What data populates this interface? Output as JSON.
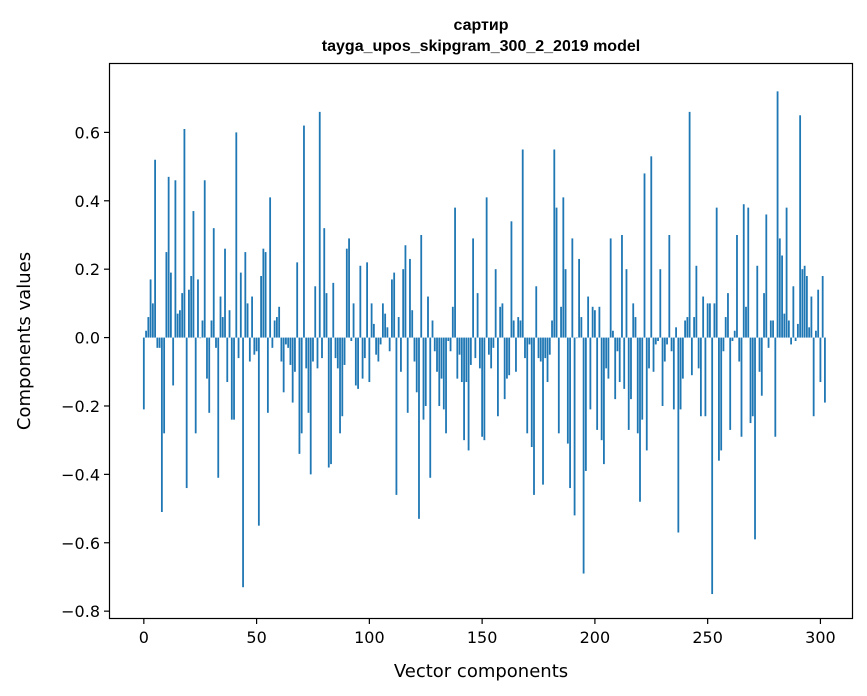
{
  "chart_data": {
    "type": "bar",
    "title": "сартир",
    "subtitle": "tayga_upos_skipgram_300_2_2019 model",
    "xlabel": "Vector components",
    "ylabel": "Components values",
    "xlim": [
      -15,
      314
    ],
    "ylim": [
      -0.82,
      0.8
    ],
    "xticks": [
      0,
      50,
      100,
      150,
      200,
      250,
      300
    ],
    "xtick_labels": [
      "0",
      "50",
      "100",
      "150",
      "200",
      "250",
      "300"
    ],
    "yticks": [
      -0.8,
      -0.6,
      -0.4,
      -0.2,
      0.0,
      0.2,
      0.4,
      0.6
    ],
    "ytick_labels": [
      "−0.8",
      "−0.6",
      "−0.4",
      "−0.2",
      "0.0",
      "0.2",
      "0.4",
      "0.6"
    ],
    "bar_color": "#1f77b4",
    "grid": false,
    "values": [
      -0.21,
      0.02,
      0.06,
      0.17,
      0.1,
      0.52,
      -0.03,
      -0.03,
      -0.51,
      -0.28,
      0.25,
      0.47,
      0.19,
      -0.14,
      0.46,
      0.07,
      0.08,
      0.13,
      0.61,
      -0.44,
      0.14,
      0.18,
      0.37,
      -0.28,
      0.17,
      0.0,
      0.05,
      0.46,
      -0.12,
      -0.22,
      0.05,
      0.32,
      -0.03,
      -0.41,
      0.12,
      0.06,
      0.26,
      -0.13,
      0.08,
      -0.24,
      -0.24,
      0.6,
      -0.06,
      0.19,
      -0.73,
      0.25,
      0.1,
      -0.07,
      0.12,
      -0.05,
      -0.04,
      -0.55,
      0.18,
      0.26,
      0.25,
      -0.22,
      0.41,
      -0.03,
      0.05,
      0.06,
      0.09,
      -0.07,
      -0.16,
      -0.02,
      -0.03,
      -0.08,
      -0.19,
      -0.1,
      0.22,
      -0.34,
      -0.28,
      0.62,
      -0.09,
      -0.22,
      -0.4,
      -0.07,
      0.15,
      -0.09,
      0.66,
      -0.06,
      0.32,
      0.13,
      -0.38,
      -0.37,
      0.16,
      -0.06,
      -0.09,
      -0.28,
      -0.23,
      -0.08,
      0.26,
      0.29,
      -0.01,
      0.1,
      -0.14,
      -0.15,
      0.21,
      -0.12,
      -0.06,
      0.22,
      -0.13,
      0.1,
      0.04,
      -0.05,
      -0.07,
      -0.02,
      0.1,
      0.07,
      0.03,
      -0.04,
      0.17,
      0.19,
      -0.46,
      0.06,
      -0.1,
      0.2,
      0.27,
      -0.22,
      0.23,
      0.08,
      -0.07,
      -0.16,
      -0.53,
      0.3,
      -0.24,
      -0.2,
      0.12,
      -0.41,
      0.05,
      -0.04,
      -0.1,
      -0.2,
      -0.12,
      -0.21,
      -0.28,
      -0.01,
      -0.04,
      0.09,
      0.38,
      -0.12,
      -0.05,
      -0.13,
      -0.3,
      -0.13,
      -0.33,
      -0.08,
      0.29,
      -0.06,
      0.13,
      -0.09,
      -0.29,
      -0.3,
      0.41,
      -0.05,
      -0.09,
      -0.03,
      0.2,
      -0.23,
      0.09,
      0.1,
      -0.18,
      -0.12,
      -0.11,
      0.34,
      0.05,
      -0.1,
      0.06,
      0.05,
      0.55,
      -0.06,
      -0.28,
      -0.02,
      -0.32,
      -0.46,
      0.15,
      -0.06,
      -0.07,
      -0.43,
      -0.06,
      -0.13,
      -0.05,
      0.05,
      0.55,
      0.38,
      -0.28,
      0.09,
      0.41,
      0.2,
      -0.31,
      -0.44,
      0.29,
      -0.52,
      0.0,
      0.23,
      0.06,
      -0.69,
      -0.39,
      0.12,
      -0.21,
      0.09,
      0.08,
      -0.27,
      0.09,
      -0.3,
      -0.37,
      -0.09,
      -0.12,
      0.29,
      0.02,
      -0.18,
      -0.04,
      -0.13,
      0.3,
      -0.15,
      0.2,
      -0.27,
      -0.18,
      0.1,
      0.06,
      -0.28,
      -0.48,
      -0.24,
      0.48,
      -0.33,
      -0.09,
      0.53,
      -0.1,
      -0.02,
      -0.01,
      0.2,
      -0.2,
      -0.07,
      -0.02,
      0.3,
      -0.04,
      -0.21,
      0.03,
      -0.57,
      -0.21,
      -0.12,
      0.05,
      0.06,
      0.66,
      -0.11,
      0.06,
      0.21,
      -0.09,
      -0.23,
      0.12,
      -0.23,
      0.1,
      0.1,
      -0.75,
      0.1,
      0.38,
      -0.36,
      -0.33,
      -0.04,
      0.06,
      0.13,
      -0.27,
      -0.01,
      0.02,
      0.3,
      -0.07,
      -0.29,
      0.39,
      0.09,
      0.38,
      -0.25,
      -0.23,
      -0.59,
      0.21,
      -0.1,
      -0.17,
      0.13,
      0.36,
      -0.03,
      0.05,
      0.05,
      -0.29,
      0.72,
      0.29,
      0.24,
      0.07,
      0.38,
      0.05,
      -0.02,
      0.15,
      -0.01,
      0.04,
      0.65,
      0.2,
      0.21,
      0.18,
      0.03,
      0.12,
      -0.23,
      0.02,
      0.14,
      -0.13,
      0.18,
      -0.19
    ]
  }
}
